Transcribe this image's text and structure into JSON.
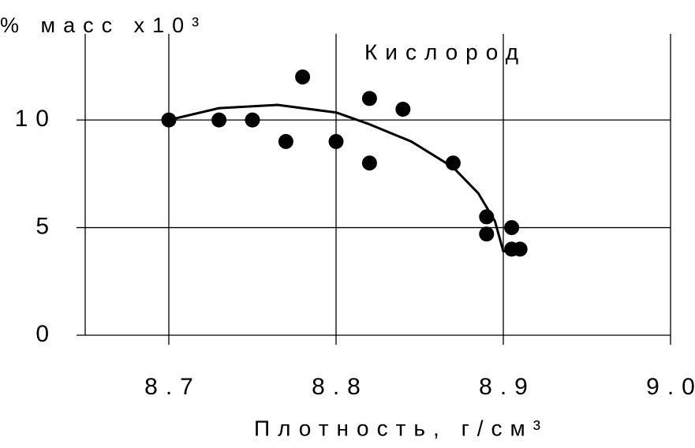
{
  "chart_data": {
    "type": "scatter",
    "y_label": "% масс x10³",
    "x_label": "Плотность, г/см³",
    "annotation": "Кислород",
    "xlim": [
      8.65,
      9.0
    ],
    "ylim": [
      0,
      14
    ],
    "xticks": [
      8.7,
      8.8,
      8.9,
      {
        "value": 9,
        "label": "9.0"
      }
    ],
    "yticks": [
      0,
      5,
      10
    ],
    "grid": true,
    "series": [
      {
        "type": "scatter",
        "color": "#000000",
        "x": [
          8.7,
          8.73,
          8.75,
          8.77,
          8.78,
          8.8,
          8.82,
          8.82,
          8.84,
          8.87,
          8.89,
          8.89,
          8.905,
          8.905,
          8.91
        ],
        "values": [
          10,
          10,
          10,
          9,
          12,
          9,
          11,
          8,
          10.5,
          8,
          5.5,
          4.7,
          5,
          4,
          4
        ]
      },
      {
        "type": "line",
        "color": "#000000",
        "x": [
          8.7,
          8.73,
          8.765,
          8.8,
          8.82,
          8.845,
          8.87,
          8.885,
          8.895,
          8.9,
          8.908
        ],
        "values": [
          10,
          10.55,
          10.7,
          10.35,
          9.8,
          9.0,
          7.8,
          6.6,
          5.3,
          3.9,
          4.0
        ]
      }
    ]
  }
}
